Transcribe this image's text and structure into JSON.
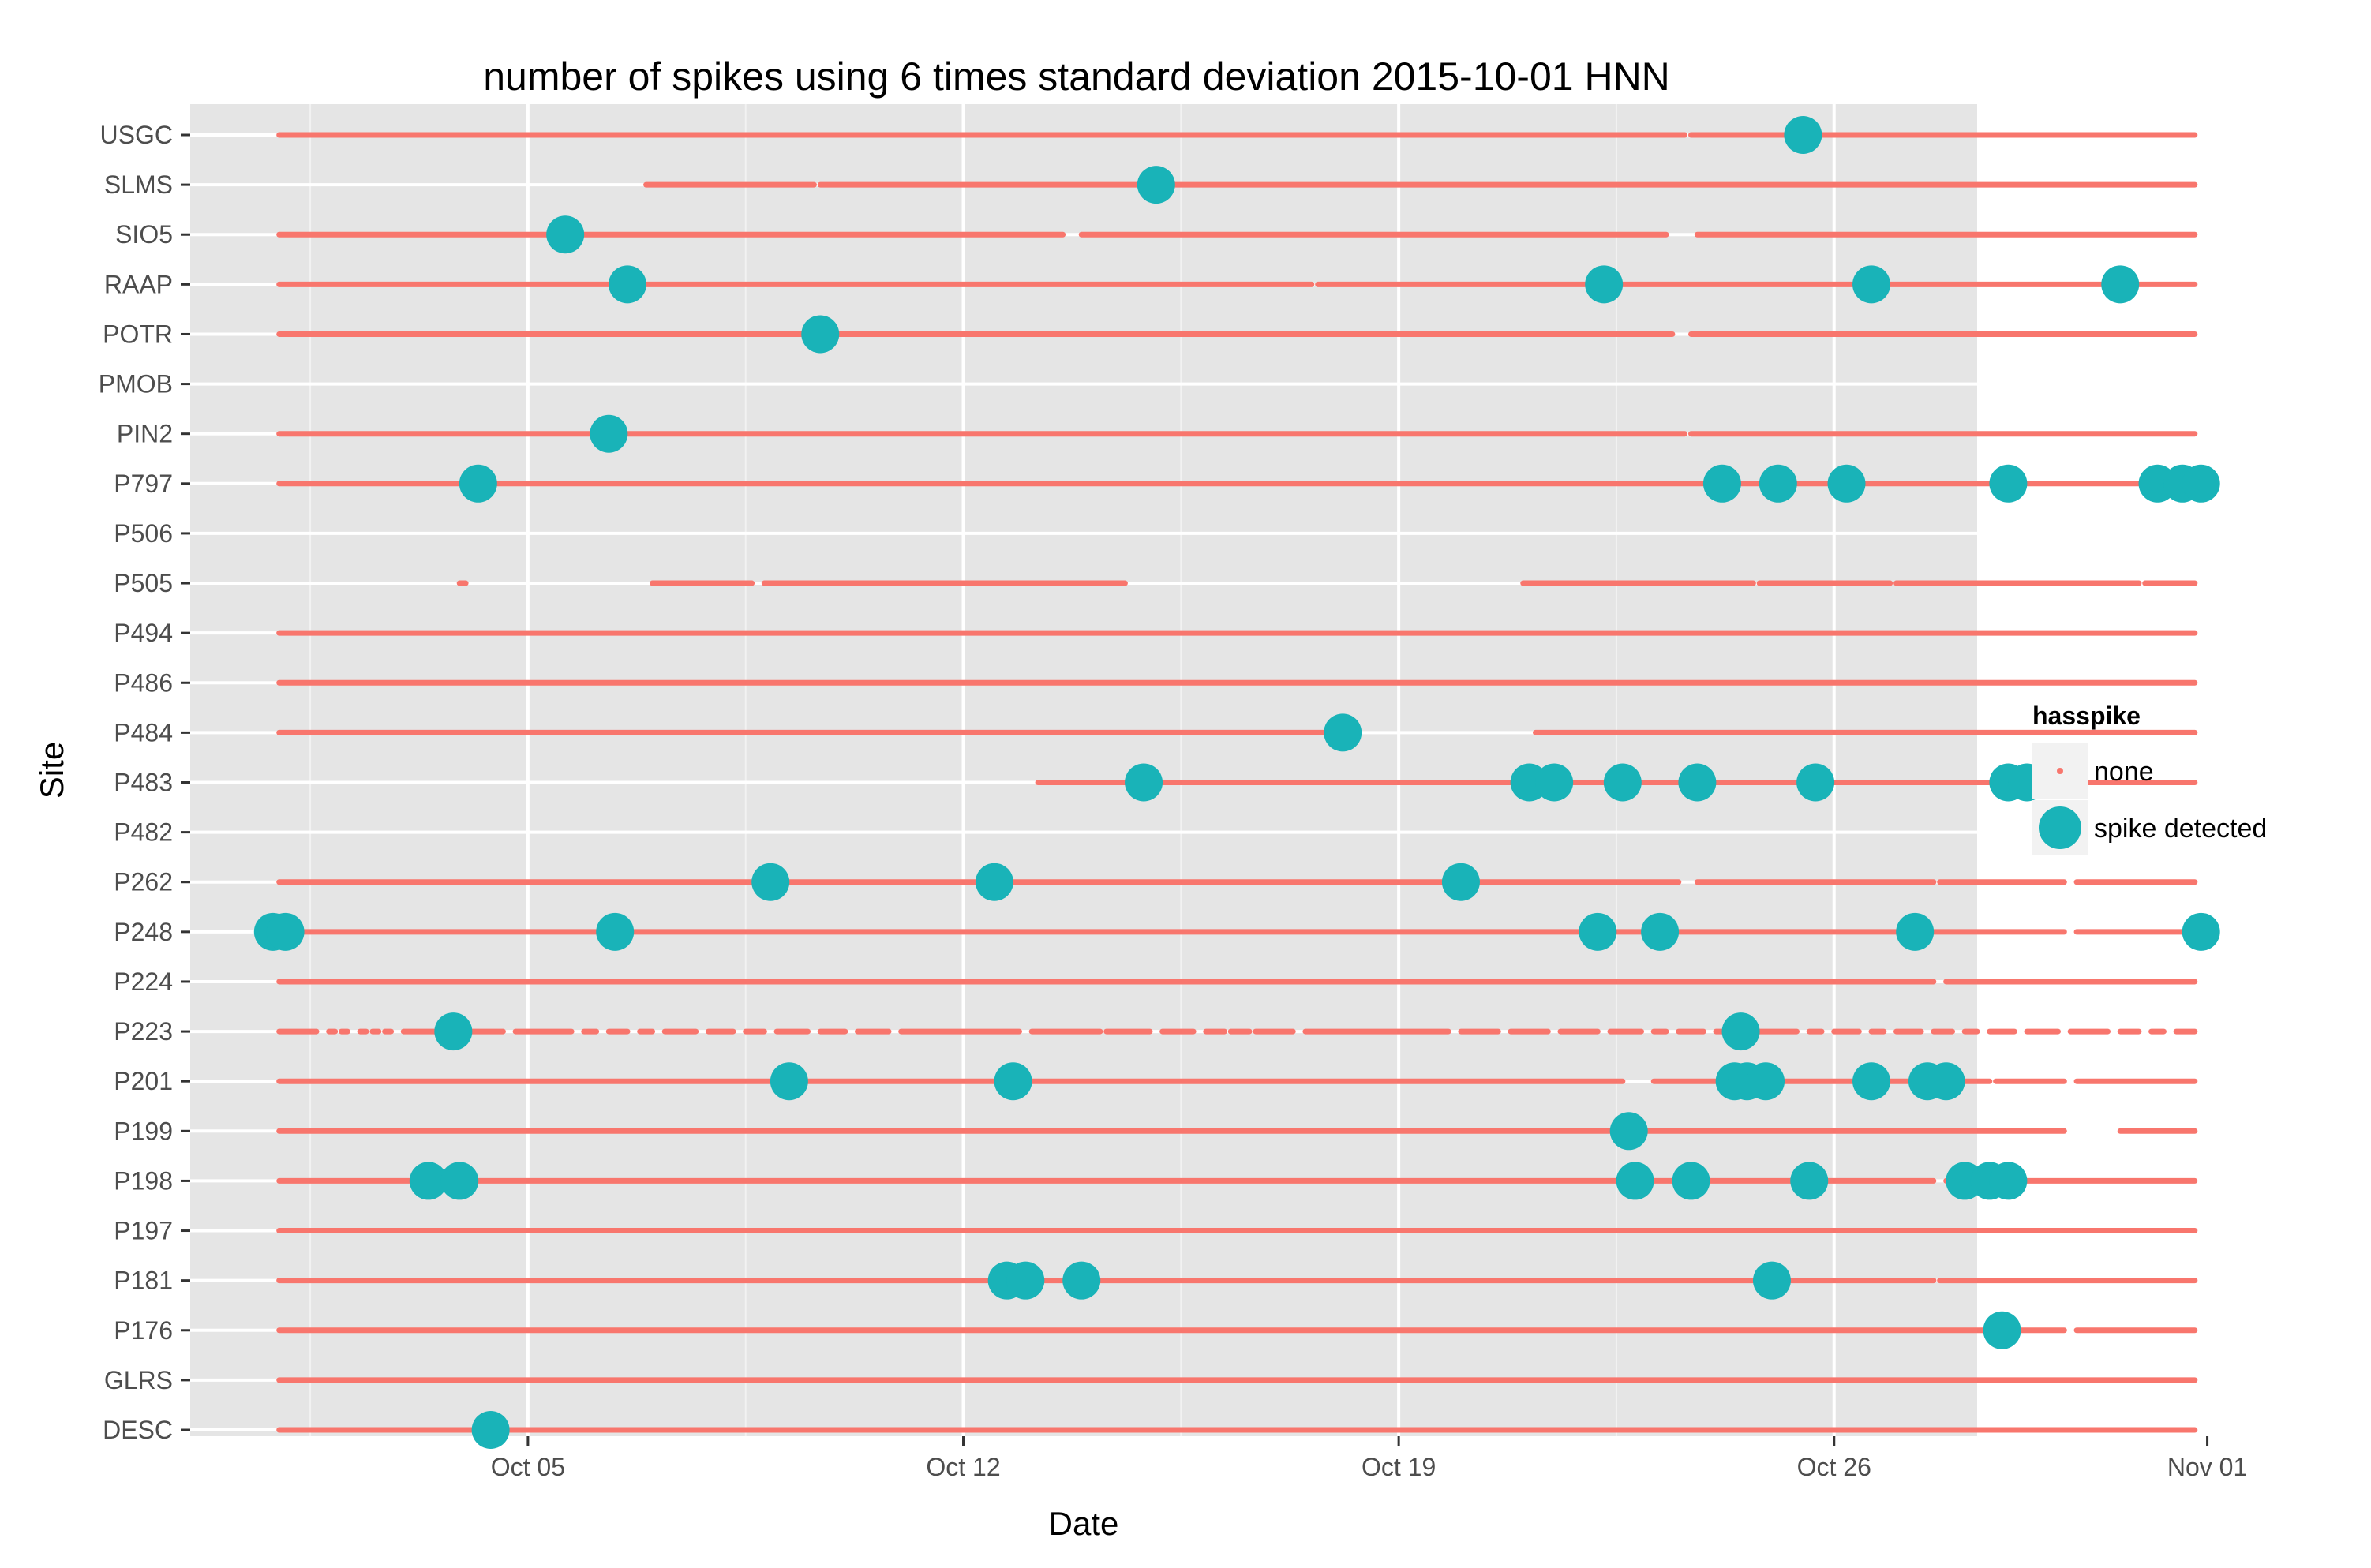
{
  "chart_data": {
    "type": "scatter",
    "title": "number of spikes using  6 times standard deviation 2015-10-01 HNN",
    "xlabel": "Date",
    "ylabel": "Site",
    "xlim": [
      -0.43,
      28.3
    ],
    "x_origin": "2015-09-30",
    "x_unit": "days since 2015-09-30",
    "x_ticks": [
      {
        "value": 5,
        "label": "Oct 05"
      },
      {
        "value": 12,
        "label": "Oct 12"
      },
      {
        "value": 19,
        "label": "Oct 19"
      },
      {
        "value": 26,
        "label": "Oct 26"
      },
      {
        "value": 32,
        "label": "Nov 01"
      }
    ],
    "categories": [
      "USGC",
      "SLMS",
      "SIO5",
      "RAAP",
      "POTR",
      "PMOB",
      "PIN2",
      "P797",
      "P506",
      "P505",
      "P494",
      "P486",
      "P484",
      "P483",
      "P482",
      "P262",
      "P248",
      "P224",
      "P223",
      "P201",
      "P199",
      "P198",
      "P197",
      "P181",
      "P176",
      "GLRS",
      "DESC"
    ],
    "legend": {
      "title": "hasspike",
      "placement": "right",
      "entries": [
        {
          "label": "none",
          "color": "#F8766D"
        },
        {
          "label": "spike detected",
          "color": "#19B3B8"
        }
      ]
    },
    "series": [
      {
        "name": "none",
        "color": "#F8766D",
        "segments": {
          "USGC": [
            [
              1,
              23.6
            ],
            [
              23.7,
              31.8
            ]
          ],
          "SLMS": [
            [
              6.9,
              9.6
            ],
            [
              9.7,
              31.8
            ]
          ],
          "SIO5": [
            [
              1,
              13.6
            ],
            [
              13.9,
              23.3
            ],
            [
              23.8,
              31.8
            ]
          ],
          "RAAP": [
            [
              1,
              17.6
            ],
            [
              17.7,
              31.8
            ]
          ],
          "POTR": [
            [
              1,
              23.4
            ],
            [
              23.7,
              31.8
            ]
          ],
          "PMOB": [],
          "PIN2": [
            [
              1,
              23.6
            ],
            [
              23.7,
              31.8
            ]
          ],
          "P797": [
            [
              1,
              31.8
            ]
          ],
          "P506": [],
          "P505": [
            [
              3.9,
              4.0
            ],
            [
              7.0,
              8.6
            ],
            [
              8.8,
              14.6
            ],
            [
              21.0,
              24.7
            ],
            [
              24.8,
              26.9
            ],
            [
              27.0,
              30.9
            ],
            [
              31.0,
              31.8
            ]
          ],
          "P494": [
            [
              1,
              31.8
            ]
          ],
          "P486": [
            [
              1,
              31.8
            ]
          ],
          "P484": [
            [
              1,
              18.0
            ],
            [
              21.2,
              31.8
            ]
          ],
          "P483": [
            [
              13.2,
              31.8
            ]
          ],
          "P482": [],
          "P262": [
            [
              1,
              23.5
            ],
            [
              23.8,
              27.6
            ],
            [
              27.7,
              29.7
            ],
            [
              29.9,
              31.8
            ]
          ],
          "P248": [
            [
              1,
              29.7
            ],
            [
              29.9,
              31.8
            ]
          ],
          "P224": [
            [
              1,
              27.6
            ],
            [
              27.8,
              31.8
            ]
          ],
          "P223": [
            [
              1,
              1.6
            ],
            [
              1.8,
              1.9
            ],
            [
              2.0,
              2.1
            ],
            [
              2.3,
              2.4
            ],
            [
              2.5,
              2.6
            ],
            [
              2.7,
              2.8
            ],
            [
              3.0,
              4.6
            ],
            [
              4.8,
              5.7
            ],
            [
              5.9,
              6.1
            ],
            [
              6.3,
              6.6
            ],
            [
              6.8,
              7.0
            ],
            [
              7.2,
              7.7
            ],
            [
              7.9,
              8.3
            ],
            [
              8.5,
              8.8
            ],
            [
              9.0,
              9.5
            ],
            [
              9.7,
              10.1
            ],
            [
              10.3,
              10.8
            ],
            [
              11.0,
              12.9
            ],
            [
              13.1,
              14.2
            ],
            [
              14.3,
              15.0
            ],
            [
              15.2,
              15.7
            ],
            [
              15.9,
              16.2
            ],
            [
              16.3,
              16.6
            ],
            [
              16.7,
              17.3
            ],
            [
              17.5,
              19.8
            ],
            [
              20.0,
              20.6
            ],
            [
              20.8,
              21.4
            ],
            [
              21.6,
              22.2
            ],
            [
              22.4,
              22.9
            ],
            [
              23.1,
              23.3
            ],
            [
              23.5,
              23.9
            ],
            [
              24.1,
              25.4
            ],
            [
              25.6,
              25.8
            ],
            [
              26.0,
              26.4
            ],
            [
              26.6,
              26.8
            ],
            [
              27.0,
              27.4
            ],
            [
              27.6,
              27.9
            ],
            [
              28.1,
              28.3
            ],
            [
              28.5,
              28.9
            ],
            [
              29.1,
              29.6
            ],
            [
              29.8,
              30.4
            ],
            [
              30.6,
              30.9
            ],
            [
              31.1,
              31.3
            ],
            [
              31.5,
              31.8
            ]
          ],
          "P201": [
            [
              1,
              22.6
            ],
            [
              23.1,
              28.5
            ],
            [
              28.6,
              29.7
            ],
            [
              29.9,
              31.8
            ]
          ],
          "P199": [
            [
              1,
              29.7
            ],
            [
              30.6,
              31.8
            ]
          ],
          "P198": [
            [
              1,
              27.6
            ],
            [
              27.8,
              31.8
            ]
          ],
          "P197": [
            [
              1,
              31.8
            ]
          ],
          "P181": [
            [
              1,
              27.6
            ],
            [
              27.7,
              31.8
            ]
          ],
          "P176": [
            [
              1,
              29.7
            ],
            [
              29.9,
              31.8
            ]
          ],
          "GLRS": [
            [
              1,
              31.8
            ]
          ],
          "DESC": [
            [
              1,
              31.8
            ]
          ]
        }
      },
      {
        "name": "spike detected",
        "color": "#19B3B8",
        "points": {
          "USGC": [
            25.5
          ],
          "SLMS": [
            15.1
          ],
          "SIO5": [
            5.6
          ],
          "RAAP": [
            6.6,
            22.3,
            26.6,
            30.6
          ],
          "POTR": [
            9.7
          ],
          "PIN2": [
            6.3
          ],
          "P797": [
            4.2,
            24.2,
            25.1,
            26.2,
            28.8,
            31.2,
            31.6,
            31.9
          ],
          "P484": [
            18.1
          ],
          "P483": [
            14.9,
            21.1,
            21.5,
            22.6,
            23.8,
            25.7,
            28.8,
            29.1
          ],
          "P262": [
            8.9,
            12.5,
            20.0
          ],
          "P248": [
            0.9,
            1.1,
            6.4,
            22.2,
            23.2,
            27.3,
            31.9
          ],
          "P223": [
            3.8,
            24.5
          ],
          "P201": [
            9.2,
            12.8,
            24.4,
            24.6,
            24.9,
            26.6,
            27.5,
            27.8
          ],
          "P199": [
            22.7
          ],
          "P198": [
            3.4,
            3.9,
            22.8,
            23.7,
            25.6,
            28.1,
            28.5,
            28.8
          ],
          "P181": [
            12.7,
            13.0,
            13.9,
            25.0
          ],
          "P176": [
            28.7
          ],
          "DESC": [
            4.4
          ]
        }
      }
    ]
  }
}
